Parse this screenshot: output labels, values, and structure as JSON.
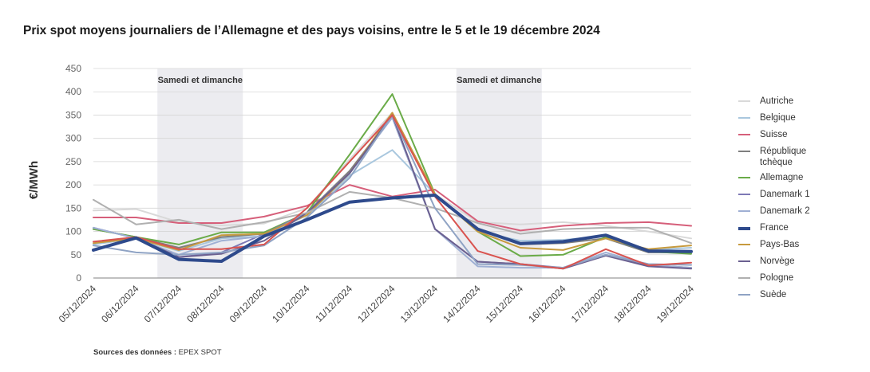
{
  "chart_data": {
    "type": "line",
    "title": "Prix spot moyens journaliers de l’Allemagne et des pays voisins, entre le 5 et le 19 décembre 2024",
    "ylabel": "€/MWh",
    "xlabel": "",
    "ylim": [
      0,
      450
    ],
    "yticks": [
      "0",
      "50",
      "100",
      "150",
      "200",
      "250",
      "300",
      "350",
      "400",
      "450"
    ],
    "categories": [
      "05/12/2024",
      "06/12/2024",
      "07/12/2024",
      "08/12/2024",
      "09/12/2024",
      "10/12/2024",
      "11/12/2024",
      "12/12/2024",
      "13/12/2024",
      "14/12/2024",
      "15/12/2024",
      "16/12/2024",
      "17/12/2024",
      "18/12/2024",
      "19/12/2024"
    ],
    "shaded_regions": [
      {
        "label": "Samedi et dimanche",
        "from": "07/12/2024",
        "to": "08/12/2024"
      },
      {
        "label": "Samedi et dimanche",
        "from": "14/12/2024",
        "to": "15/12/2024"
      }
    ],
    "legend_position": "right",
    "grid": true,
    "series": [
      {
        "name": "Autriche",
        "color": "#d9d9d9",
        "width": 2,
        "values": [
          145,
          148,
          120,
          113,
          117,
          150,
          255,
          355,
          180,
          120,
          115,
          120,
          112,
          100,
          85
        ]
      },
      {
        "name": "Belgique",
        "color": "#a9c7de",
        "width": 2,
        "values": [
          72,
          85,
          58,
          85,
          90,
          135,
          220,
          275,
          180,
          100,
          80,
          82,
          90,
          60,
          65
        ]
      },
      {
        "name": "Suisse",
        "color": "#d65f7a",
        "width": 2,
        "values": [
          130,
          130,
          118,
          118,
          132,
          155,
          200,
          175,
          190,
          122,
          102,
          112,
          118,
          120,
          112
        ]
      },
      {
        "name": "République tchèque",
        "color": "#7f7f7f",
        "width": 2,
        "values": [
          105,
          88,
          65,
          88,
          95,
          140,
          230,
          350,
          180,
          105,
          72,
          75,
          85,
          55,
          55
        ]
      },
      {
        "name": "Allemagne",
        "color": "#6aab48",
        "width": 2,
        "values": [
          105,
          88,
          72,
          98,
          98,
          140,
          265,
          395,
          180,
          100,
          47,
          50,
          88,
          57,
          52
        ]
      },
      {
        "name": "Danemark 1",
        "color": "#7d79b5",
        "width": 2,
        "values": [
          108,
          85,
          45,
          55,
          95,
          140,
          225,
          345,
          105,
          35,
          30,
          22,
          50,
          28,
          22
        ]
      },
      {
        "name": "Danemark 2",
        "color": "#9fb0d4",
        "width": 2,
        "values": [
          108,
          85,
          50,
          80,
          90,
          140,
          225,
          345,
          105,
          25,
          22,
          22,
          55,
          28,
          22
        ]
      },
      {
        "name": "France",
        "color": "#2e4a8c",
        "width": 4,
        "values": [
          60,
          86,
          40,
          36,
          90,
          125,
          163,
          172,
          178,
          105,
          74,
          78,
          92,
          58,
          57
        ]
      },
      {
        "name": "Pays-Bas",
        "color": "#c79a3e",
        "width": 2,
        "values": [
          75,
          85,
          60,
          92,
          95,
          135,
          225,
          355,
          180,
          100,
          65,
          60,
          85,
          62,
          70
        ]
      },
      {
        "name": "Norvège",
        "color": "#6b6090",
        "width": 2,
        "values": [
          60,
          86,
          45,
          52,
          80,
          140,
          225,
          350,
          105,
          35,
          30,
          20,
          48,
          25,
          20
        ]
      },
      {
        "name": "Pologne",
        "color": "#b0b0b0",
        "width": 2,
        "values": [
          168,
          115,
          125,
          105,
          120,
          140,
          185,
          172,
          150,
          118,
          95,
          105,
          108,
          108,
          75
        ]
      },
      {
        "name": "Suède",
        "color": "#8fa3c4",
        "width": 2,
        "values": [
          70,
          55,
          50,
          55,
          70,
          130,
          215,
          350,
          150,
          30,
          28,
          22,
          50,
          30,
          28
        ]
      },
      {
        "name": "",
        "color": "#d9534f",
        "width": 2,
        "values": [
          78,
          88,
          62,
          62,
          72,
          150,
          250,
          350,
          175,
          58,
          30,
          20,
          62,
          27,
          33
        ]
      }
    ]
  },
  "source": {
    "label": "Sources des données :",
    "value": " EPEX SPOT"
  }
}
